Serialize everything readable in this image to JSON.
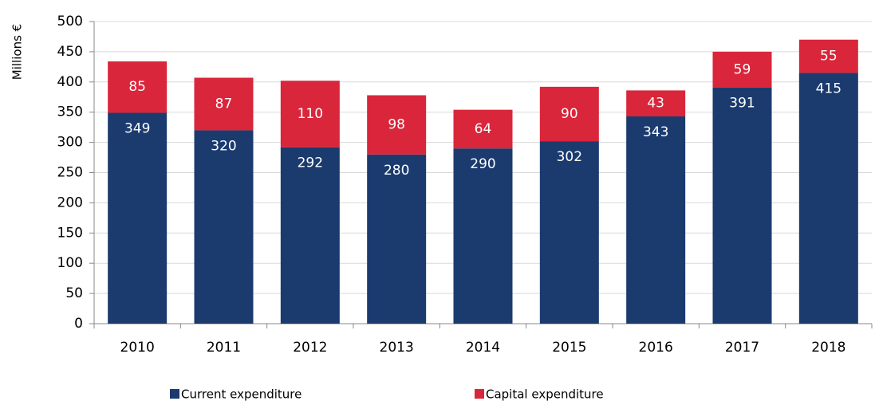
{
  "chart_data": {
    "type": "stacked_bar",
    "y_label": "Millions €",
    "categories": [
      "2010",
      "2011",
      "2012",
      "2013",
      "2014",
      "2015",
      "2016",
      "2017",
      "2018"
    ],
    "series": [
      {
        "name": "Current expenditure",
        "color": "#1b3b6f",
        "values": [
          349,
          320,
          292,
          280,
          290,
          302,
          343,
          391,
          415
        ]
      },
      {
        "name": "Capital expenditure",
        "color": "#d9263a",
        "values": [
          85,
          87,
          110,
          98,
          64,
          90,
          43,
          59,
          55
        ]
      }
    ],
    "ylim": [
      0,
      500
    ],
    "yticks": [
      0,
      50,
      100,
      150,
      200,
      250,
      300,
      350,
      400,
      450,
      500
    ],
    "grid": true,
    "legend": "bottom"
  }
}
